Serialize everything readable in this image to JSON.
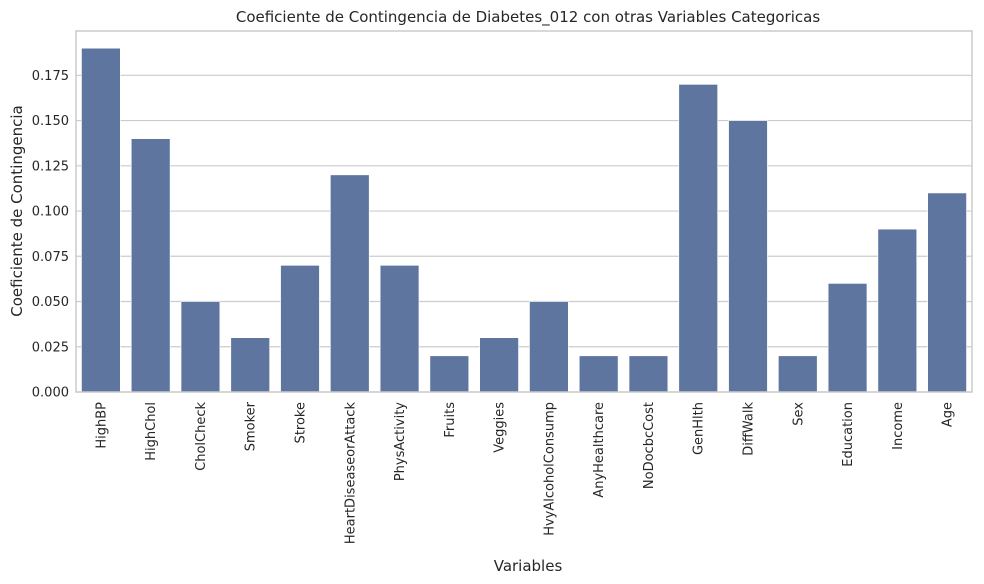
{
  "chart_data": {
    "type": "bar",
    "title": "Coeficiente de Contingencia de Diabetes_012 con otras Variables Categoricas",
    "xlabel": "Variables",
    "ylabel": "Coeficiente de Contingencia",
    "categories": [
      "HighBP",
      "HighChol",
      "CholCheck",
      "Smoker",
      "Stroke",
      "HeartDiseaseorAttack",
      "PhysActivity",
      "Fruits",
      "Veggies",
      "HvyAlcoholConsump",
      "AnyHealthcare",
      "NoDocbcCost",
      "GenHlth",
      "DiffWalk",
      "Sex",
      "Education",
      "Income",
      "Age"
    ],
    "values": [
      0.19,
      0.14,
      0.05,
      0.03,
      0.07,
      0.12,
      0.07,
      0.02,
      0.03,
      0.05,
      0.02,
      0.02,
      0.17,
      0.15,
      0.02,
      0.06,
      0.09,
      0.11
    ],
    "ylim": [
      0,
      0.1995
    ],
    "yticks": [
      "0.000",
      "0.025",
      "0.050",
      "0.075",
      "0.100",
      "0.125",
      "0.150",
      "0.175"
    ],
    "bar_color": "#5e75a0",
    "grid": true,
    "legend": "none"
  }
}
